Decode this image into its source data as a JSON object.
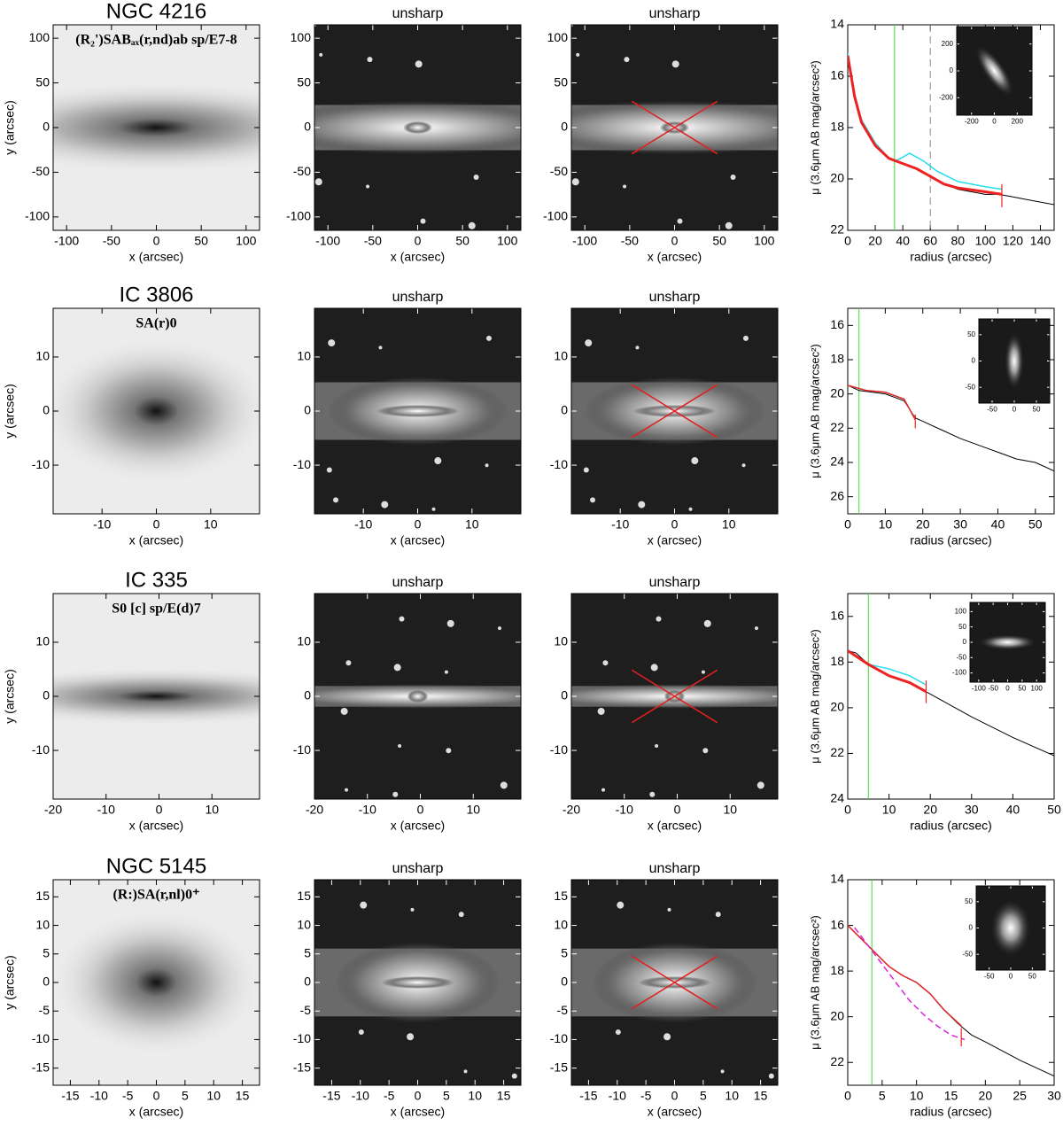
{
  "rows": [
    {
      "name": "NGC 4216",
      "classification": "(R₂')SABₐₓ(r,nd)ab sp/E7-8",
      "titles": [
        "unsharp",
        "unsharp"
      ],
      "x_label": "x (arcsec)",
      "y_label": "y (arcsec)",
      "image": {
        "xlim": [
          -115,
          115
        ],
        "ylim": [
          -115,
          115
        ],
        "xticks": [
          -100,
          -50,
          0,
          50,
          100
        ],
        "yticks": [
          -100,
          -50,
          0,
          50,
          100
        ]
      },
      "profile": {
        "type": "line",
        "x_label": "radius (arcsec)",
        "y_label": "μ (3.6μm AB mag/arcsec²)",
        "xlim": [
          0,
          150
        ],
        "ylim": [
          22,
          14
        ],
        "xticks": [
          0,
          20,
          40,
          60,
          80,
          100,
          120,
          140
        ],
        "yticks": [
          14,
          16,
          18,
          20,
          22
        ],
        "vlines": [
          {
            "x": 34,
            "color": "#33dd33",
            "dashed": false
          },
          {
            "x": 60,
            "color": "#888888",
            "dashed": true
          }
        ],
        "error_bar": {
          "x": 112,
          "y": [
            20.2,
            21.1
          ],
          "color": "#ee2222"
        },
        "series": [
          {
            "color": "#000000",
            "width": 1,
            "x": [
              0,
              5,
              10,
              20,
              30,
              40,
              50,
              60,
              70,
              80,
              90,
              100,
              110,
              120,
              130,
              140,
              150
            ],
            "y": [
              15.2,
              16.8,
              17.8,
              18.7,
              19.2,
              19.4,
              19.6,
              19.9,
              20.2,
              20.4,
              20.5,
              20.6,
              20.6,
              20.7,
              20.8,
              20.9,
              21.0
            ]
          },
          {
            "color": "#22ddee",
            "width": 1.5,
            "x": [
              0,
              5,
              10,
              20,
              30,
              35,
              45,
              55,
              65,
              80,
              100,
              112
            ],
            "y": [
              15.1,
              16.7,
              17.7,
              18.6,
              19.2,
              19.3,
              19.0,
              19.3,
              19.7,
              20.1,
              20.3,
              20.4
            ]
          },
          {
            "color": "#ee2222",
            "width": 3,
            "x": [
              0,
              5,
              10,
              20,
              30,
              40,
              50,
              60,
              70,
              80,
              100,
              112
            ],
            "y": [
              15.2,
              16.8,
              17.8,
              18.7,
              19.2,
              19.4,
              19.6,
              19.9,
              20.2,
              20.35,
              20.5,
              20.6
            ]
          }
        ],
        "inset": {
          "xlim": [
            -330,
            330
          ],
          "ylim": [
            -330,
            330
          ],
          "xticks": [
            -200,
            0,
            200
          ],
          "yticks": [
            -200,
            0,
            200
          ]
        }
      }
    },
    {
      "name": "IC 3806",
      "classification": "SA(r)0",
      "titles": [
        "unsharp",
        "unsharp"
      ],
      "x_label": "x (arcsec)",
      "y_label": "y (arcsec)",
      "image": {
        "xlim": [
          -19,
          19
        ],
        "ylim": [
          -19,
          19
        ],
        "xticks": [
          -10,
          0,
          10
        ],
        "yticks": [
          -10,
          0,
          10
        ]
      },
      "profile": {
        "type": "line",
        "x_label": "radius (arcsec)",
        "y_label": "μ (3.6μm AB mag/arcsec²)",
        "xlim": [
          0,
          55
        ],
        "ylim": [
          27,
          15
        ],
        "xticks": [
          0,
          10,
          20,
          30,
          40,
          50
        ],
        "yticks": [
          16,
          18,
          20,
          22,
          24,
          26
        ],
        "vlines": [
          {
            "x": 3,
            "color": "#33dd33",
            "dashed": false
          }
        ],
        "error_bar": {
          "x": 18,
          "y": [
            21.2,
            22.0
          ],
          "color": "#ee2222"
        },
        "series": [
          {
            "color": "#000000",
            "width": 1,
            "x": [
              0,
              3,
              10,
              15,
              18,
              20,
              25,
              30,
              35,
              40,
              45,
              50,
              55
            ],
            "y": [
              19.5,
              19.8,
              20.0,
              20.4,
              21.4,
              21.6,
              22.1,
              22.6,
              23.0,
              23.4,
              23.8,
              24.0,
              24.5
            ]
          },
          {
            "color": "#22ddee",
            "width": 1.5,
            "x": [
              0,
              5,
              10,
              15,
              18
            ],
            "y": [
              19.5,
              19.8,
              19.9,
              20.3,
              21.5
            ]
          },
          {
            "color": "#ee2222",
            "width": 1.5,
            "x": [
              0,
              5,
              10,
              15,
              18
            ],
            "y": [
              19.5,
              19.8,
              19.9,
              20.3,
              21.5
            ]
          }
        ],
        "inset": {
          "xlim": [
            -80,
            80
          ],
          "ylim": [
            -80,
            80
          ],
          "xticks": [
            -50,
            0,
            50
          ],
          "yticks": [
            -50,
            0,
            50
          ]
        }
      }
    },
    {
      "name": "IC  335",
      "classification": "S0  [c] sp/E(d)7",
      "titles": [
        "unsharp",
        "unsharp"
      ],
      "x_label": "x (arcsec)",
      "y_label": "y (arcsec)",
      "image": {
        "xlim": [
          -20,
          19
        ],
        "ylim": [
          -19,
          19
        ],
        "xticks": [
          -20,
          -10,
          0,
          10
        ],
        "yticks": [
          -10,
          0,
          10
        ]
      },
      "profile": {
        "type": "line",
        "x_label": "radius (arcsec)",
        "y_label": "μ (3.6μm AB mag/arcsec²)",
        "xlim": [
          0,
          50
        ],
        "ylim": [
          24,
          15
        ],
        "xticks": [
          0,
          10,
          20,
          30,
          40,
          50
        ],
        "yticks": [
          16,
          18,
          20,
          22,
          24
        ],
        "vlines": [
          {
            "x": 5,
            "color": "#33dd33",
            "dashed": false
          }
        ],
        "error_bar": {
          "x": 19,
          "y": [
            18.8,
            19.8
          ],
          "color": "#ee2222"
        },
        "series": [
          {
            "color": "#000000",
            "width": 1,
            "x": [
              0,
              2,
              5,
              10,
              15,
              20,
              30,
              40,
              50
            ],
            "y": [
              17.5,
              17.6,
              18.1,
              18.6,
              18.9,
              19.4,
              20.4,
              21.3,
              22.1
            ]
          },
          {
            "color": "#22ddee",
            "width": 1.5,
            "x": [
              0,
              5,
              10,
              15,
              19
            ],
            "y": [
              17.5,
              18.1,
              18.3,
              18.6,
              19.0
            ]
          },
          {
            "color": "#ee2222",
            "width": 3,
            "x": [
              0,
              5,
              10,
              15,
              19
            ],
            "y": [
              17.5,
              18.1,
              18.6,
              18.9,
              19.3
            ]
          }
        ],
        "inset": {
          "xlim": [
            -130,
            130
          ],
          "ylim": [
            -130,
            130
          ],
          "xticks": [
            -100,
            -50,
            0,
            50,
            100
          ],
          "yticks": [
            -100,
            -50,
            0,
            50,
            100
          ]
        }
      }
    },
    {
      "name": "NGC 5145",
      "classification": "(R:)SA(r,nl)0⁺",
      "titles": [
        "unsharp",
        "unsharp"
      ],
      "x_label": "x (arcsec)",
      "y_label": "y (arcsec)",
      "image": {
        "xlim": [
          -18,
          18
        ],
        "ylim": [
          -18,
          18
        ],
        "xticks": [
          -15,
          -10,
          -5,
          0,
          5,
          10,
          15
        ],
        "yticks": [
          -15,
          -10,
          -5,
          0,
          5,
          10,
          15
        ]
      },
      "profile": {
        "type": "line",
        "x_label": "radius (arcsec)",
        "y_label": "μ (3.6μm AB mag/arcsec²)",
        "xlim": [
          0,
          30
        ],
        "ylim": [
          23,
          14
        ],
        "xticks": [
          0,
          5,
          10,
          15,
          20,
          25,
          30
        ],
        "yticks": [
          14,
          16,
          18,
          20,
          22
        ],
        "vlines": [
          {
            "x": 3.5,
            "color": "#33dd33",
            "dashed": false
          }
        ],
        "error_bar": {
          "x": 16.5,
          "y": [
            20.5,
            21.3
          ],
          "color": "#ee2222"
        },
        "series": [
          {
            "color": "#000000",
            "width": 1,
            "x": [
              0,
              2,
              4,
              6,
              8,
              10,
              12,
              14,
              16,
              18,
              20,
              25,
              30
            ],
            "y": [
              16.0,
              16.6,
              17.2,
              17.8,
              18.2,
              18.5,
              19.0,
              19.7,
              20.3,
              20.8,
              21.1,
              21.9,
              22.6
            ]
          },
          {
            "color": "#22ddee",
            "width": 1.5,
            "x": [
              0,
              2,
              4,
              6,
              8,
              10,
              12,
              14,
              16.5
            ],
            "y": [
              16.0,
              16.6,
              17.2,
              17.8,
              18.2,
              18.5,
              19.0,
              19.7,
              20.4
            ]
          },
          {
            "color": "#ee2222",
            "width": 1.5,
            "x": [
              0,
              2,
              4,
              6,
              8,
              10,
              12,
              14,
              16.5
            ],
            "y": [
              16.0,
              16.6,
              17.2,
              17.8,
              18.2,
              18.5,
              19.0,
              19.7,
              20.4
            ]
          },
          {
            "color": "#dd22dd",
            "width": 1.5,
            "dashed": true,
            "x": [
              1,
              3,
              5,
              7,
              9,
              11,
              13,
              15,
              17
            ],
            "y": [
              16.1,
              16.9,
              17.7,
              18.5,
              19.3,
              19.9,
              20.4,
              20.8,
              21.0
            ]
          }
        ],
        "inset": {
          "xlim": [
            -80,
            80
          ],
          "ylim": [
            -80,
            80
          ],
          "xticks": [
            -50,
            0,
            50
          ],
          "yticks": [
            -50,
            0,
            50
          ]
        }
      }
    }
  ]
}
